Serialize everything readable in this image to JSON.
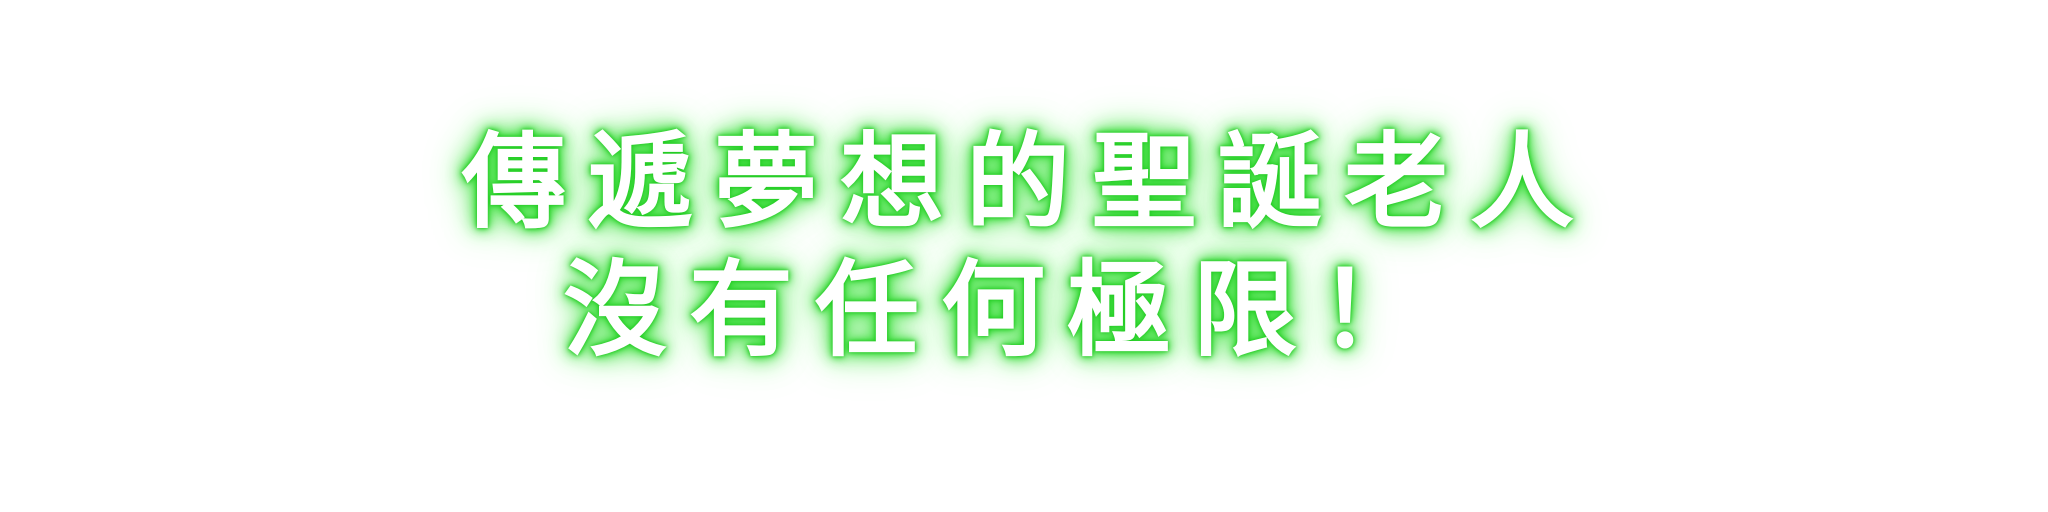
{
  "banner": {
    "line1": "傳遞夢想的聖誕老人",
    "line2": "沒有任何極限！"
  },
  "colors": {
    "text": "#ffffff",
    "glow": "#3cdc3c",
    "background": "#ffffff"
  }
}
